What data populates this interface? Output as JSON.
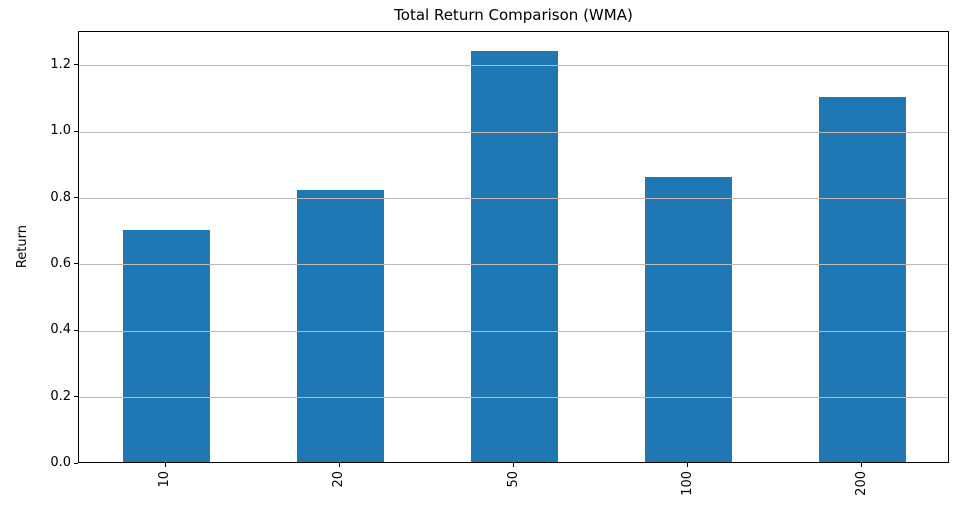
{
  "chart_data": {
    "type": "bar",
    "title": "Total Return Comparison (WMA)",
    "xlabel": "",
    "ylabel": "Return",
    "categories": [
      "10",
      "20",
      "50",
      "100",
      "200"
    ],
    "values": [
      0.7,
      0.82,
      1.24,
      0.86,
      1.1
    ],
    "yticks": [
      0.0,
      0.2,
      0.4,
      0.6,
      0.8,
      1.0,
      1.2
    ],
    "ylim": [
      0,
      1.302
    ],
    "grid": "horizontal-only",
    "grid_over_bars": true,
    "legend": "none",
    "xtick_label_rotation_deg": 90,
    "bar_color": "#1f77b4",
    "grid_color": "#b9b9b9",
    "spine_color": "#000000",
    "text_color": "#000000"
  }
}
